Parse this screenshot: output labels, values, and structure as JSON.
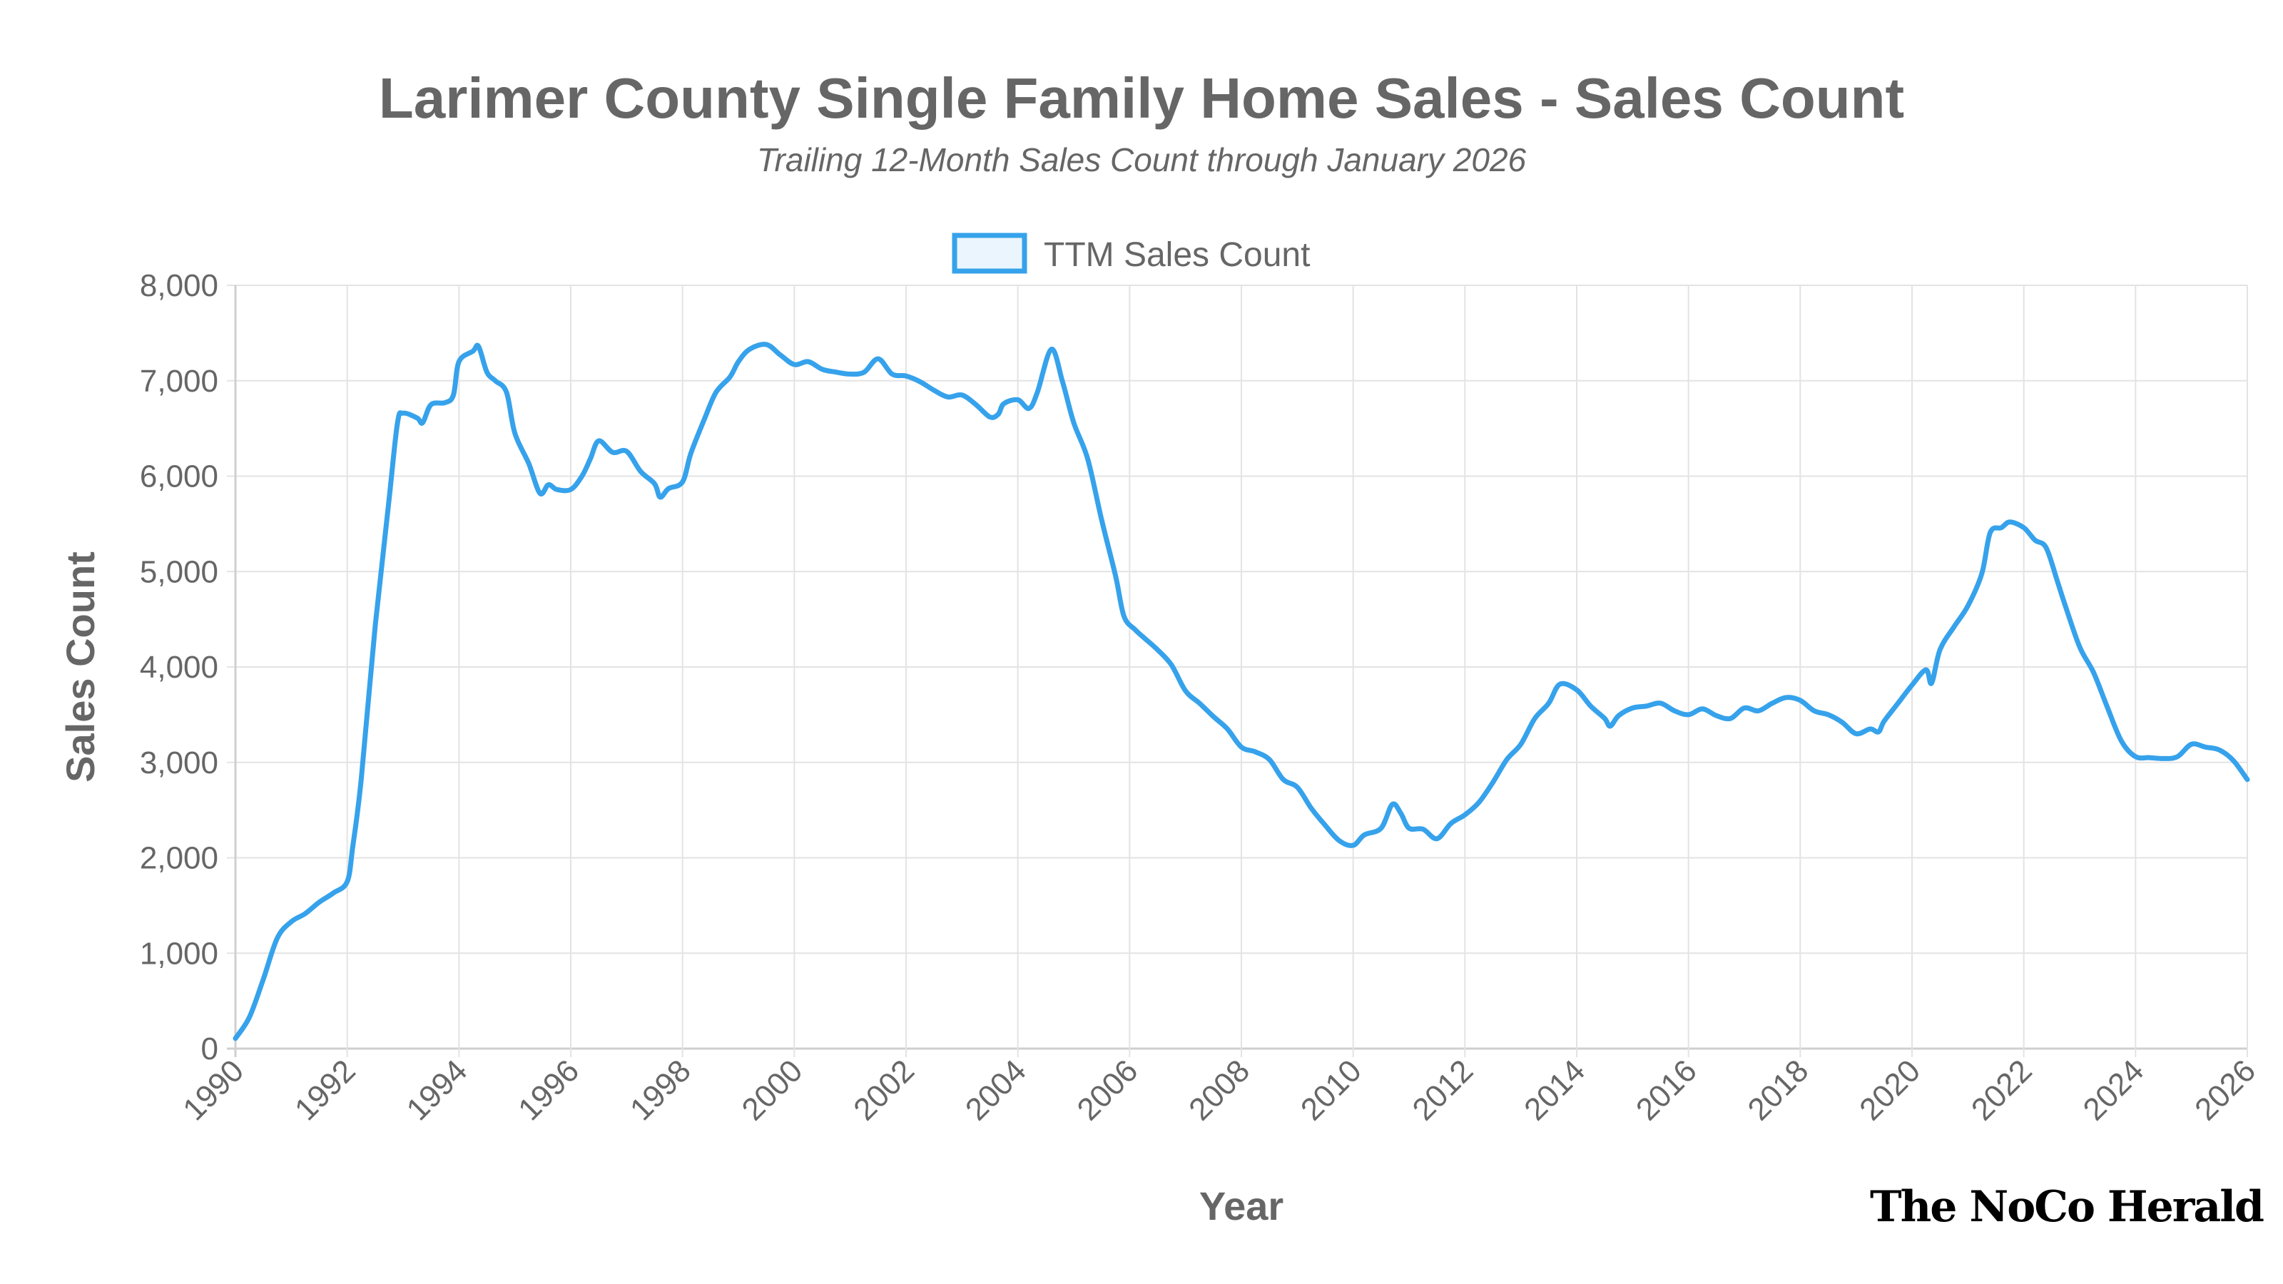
{
  "chart_data": {
    "type": "line",
    "title": "Larimer County Single Family Home Sales - Sales Count",
    "subtitle": "Trailing 12-Month Sales Count through January 2026",
    "xlabel": "Year",
    "ylabel": "Sales Count",
    "xlim": [
      1990,
      2026
    ],
    "ylim": [
      0,
      8000
    ],
    "x_ticks": [
      "1990",
      "1992",
      "1994",
      "1996",
      "1998",
      "2000",
      "2002",
      "2004",
      "2006",
      "2008",
      "2010",
      "2012",
      "2014",
      "2016",
      "2018",
      "2020",
      "2022",
      "2024",
      "2026"
    ],
    "y_ticks": [
      "0",
      "1,000",
      "2,000",
      "3,000",
      "4,000",
      "5,000",
      "6,000",
      "7,000",
      "8,000"
    ],
    "grid": true,
    "legend_placement": "top-center",
    "series": [
      {
        "name": "TTM Sales Count",
        "color": "#36a2eb",
        "fill": "#eaf5fd",
        "x": [
          1990.0,
          1990.25,
          1990.5,
          1990.75,
          1991.0,
          1991.25,
          1991.5,
          1991.75,
          1992.0,
          1992.1,
          1992.25,
          1992.5,
          1992.75,
          1992.9,
          1993.0,
          1993.25,
          1993.35,
          1993.5,
          1993.75,
          1993.9,
          1994.0,
          1994.25,
          1994.35,
          1994.5,
          1994.65,
          1994.85,
          1995.0,
          1995.25,
          1995.45,
          1995.6,
          1995.75,
          1996.0,
          1996.2,
          1996.35,
          1996.5,
          1996.75,
          1997.0,
          1997.25,
          1997.5,
          1997.6,
          1997.75,
          1998.0,
          1998.15,
          1998.4,
          1998.6,
          1998.85,
          1999.0,
          1999.2,
          1999.5,
          1999.75,
          2000.0,
          2000.25,
          2000.5,
          2000.75,
          2001.0,
          2001.25,
          2001.5,
          2001.75,
          2002.0,
          2002.25,
          2002.5,
          2002.75,
          2003.0,
          2003.25,
          2003.5,
          2003.65,
          2003.75,
          2004.0,
          2004.2,
          2004.35,
          2004.6,
          2004.8,
          2005.0,
          2005.25,
          2005.5,
          2005.75,
          2005.9,
          2006.1,
          2006.25,
          2006.5,
          2006.75,
          2007.0,
          2007.25,
          2007.5,
          2007.75,
          2008.0,
          2008.25,
          2008.5,
          2008.75,
          2009.0,
          2009.25,
          2009.5,
          2009.75,
          2010.0,
          2010.2,
          2010.5,
          2010.7,
          2010.85,
          2011.0,
          2011.25,
          2011.5,
          2011.75,
          2012.0,
          2012.25,
          2012.5,
          2012.75,
          2013.0,
          2013.25,
          2013.5,
          2013.7,
          2014.0,
          2014.25,
          2014.5,
          2014.6,
          2014.75,
          2015.0,
          2015.25,
          2015.5,
          2015.75,
          2016.0,
          2016.25,
          2016.5,
          2016.75,
          2017.0,
          2017.25,
          2017.5,
          2017.75,
          2018.0,
          2018.25,
          2018.5,
          2018.75,
          2019.0,
          2019.25,
          2019.4,
          2019.5,
          2019.75,
          2020.0,
          2020.25,
          2020.35,
          2020.5,
          2020.75,
          2021.0,
          2021.25,
          2021.4,
          2021.6,
          2021.75,
          2022.0,
          2022.2,
          2022.4,
          2022.6,
          2022.75,
          2023.0,
          2023.25,
          2023.5,
          2023.75,
          2024.0,
          2024.25,
          2024.5,
          2024.75,
          2025.0,
          2025.25,
          2025.5,
          2025.75,
          2026.0
        ],
        "values": [
          107,
          330,
          730,
          1160,
          1330,
          1415,
          1535,
          1630,
          1750,
          2120,
          2820,
          4420,
          5760,
          6560,
          6660,
          6610,
          6560,
          6750,
          6770,
          6850,
          7200,
          7310,
          7360,
          7090,
          7000,
          6880,
          6450,
          6130,
          5820,
          5910,
          5860,
          5860,
          6000,
          6180,
          6370,
          6250,
          6260,
          6050,
          5920,
          5780,
          5870,
          5940,
          6240,
          6610,
          6880,
          7040,
          7200,
          7330,
          7380,
          7270,
          7170,
          7200,
          7120,
          7090,
          7070,
          7090,
          7230,
          7070,
          7050,
          6990,
          6900,
          6830,
          6850,
          6750,
          6620,
          6650,
          6760,
          6800,
          6710,
          6880,
          7330,
          6990,
          6560,
          6180,
          5540,
          4950,
          4530,
          4390,
          4310,
          4180,
          4020,
          3750,
          3620,
          3480,
          3350,
          3160,
          3110,
          3030,
          2820,
          2740,
          2520,
          2340,
          2180,
          2130,
          2240,
          2310,
          2560,
          2470,
          2310,
          2300,
          2200,
          2360,
          2450,
          2580,
          2790,
          3030,
          3190,
          3460,
          3620,
          3820,
          3760,
          3590,
          3460,
          3380,
          3490,
          3570,
          3590,
          3620,
          3540,
          3500,
          3560,
          3490,
          3460,
          3570,
          3540,
          3620,
          3680,
          3650,
          3540,
          3500,
          3420,
          3300,
          3350,
          3320,
          3430,
          3620,
          3810,
          3970,
          3830,
          4180,
          4420,
          4640,
          4980,
          5410,
          5460,
          5520,
          5460,
          5330,
          5250,
          4900,
          4630,
          4210,
          3940,
          3570,
          3220,
          3060,
          3050,
          3040,
          3060,
          3190,
          3160,
          3130,
          3020,
          2820
        ]
      }
    ]
  },
  "branding": {
    "logo_text": "The NoCo Herald"
  }
}
